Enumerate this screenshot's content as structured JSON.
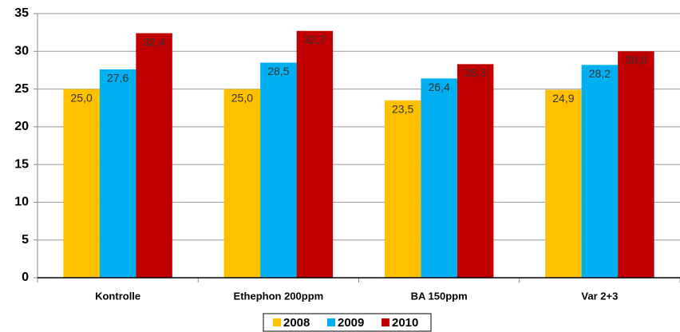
{
  "chart_data": {
    "type": "bar",
    "categories": [
      "Kontrolle",
      "Ethephon 200ppm",
      "BA 150ppm",
      "Var 2+3"
    ],
    "series": [
      {
        "name": "2008",
        "color": "#ffc000",
        "values": [
          25.0,
          25.0,
          23.5,
          24.9
        ],
        "value_labels": [
          "25,0",
          "25,0",
          "23,5",
          "24,9"
        ]
      },
      {
        "name": "2009",
        "color": "#00b0f0",
        "values": [
          27.6,
          28.5,
          26.4,
          28.2
        ],
        "value_labels": [
          "27,6",
          "28,5",
          "26,4",
          "28,2"
        ]
      },
      {
        "name": "2010",
        "color": "#c00000",
        "values": [
          32.4,
          32.7,
          28.3,
          30.0
        ],
        "value_labels": [
          "32,4",
          "32,7",
          "28,3",
          "30,0"
        ]
      }
    ],
    "ylim": [
      0,
      35
    ],
    "yticks": [
      0,
      5,
      10,
      15,
      20,
      25,
      30,
      35
    ],
    "grid": true,
    "legend": "bottom"
  }
}
